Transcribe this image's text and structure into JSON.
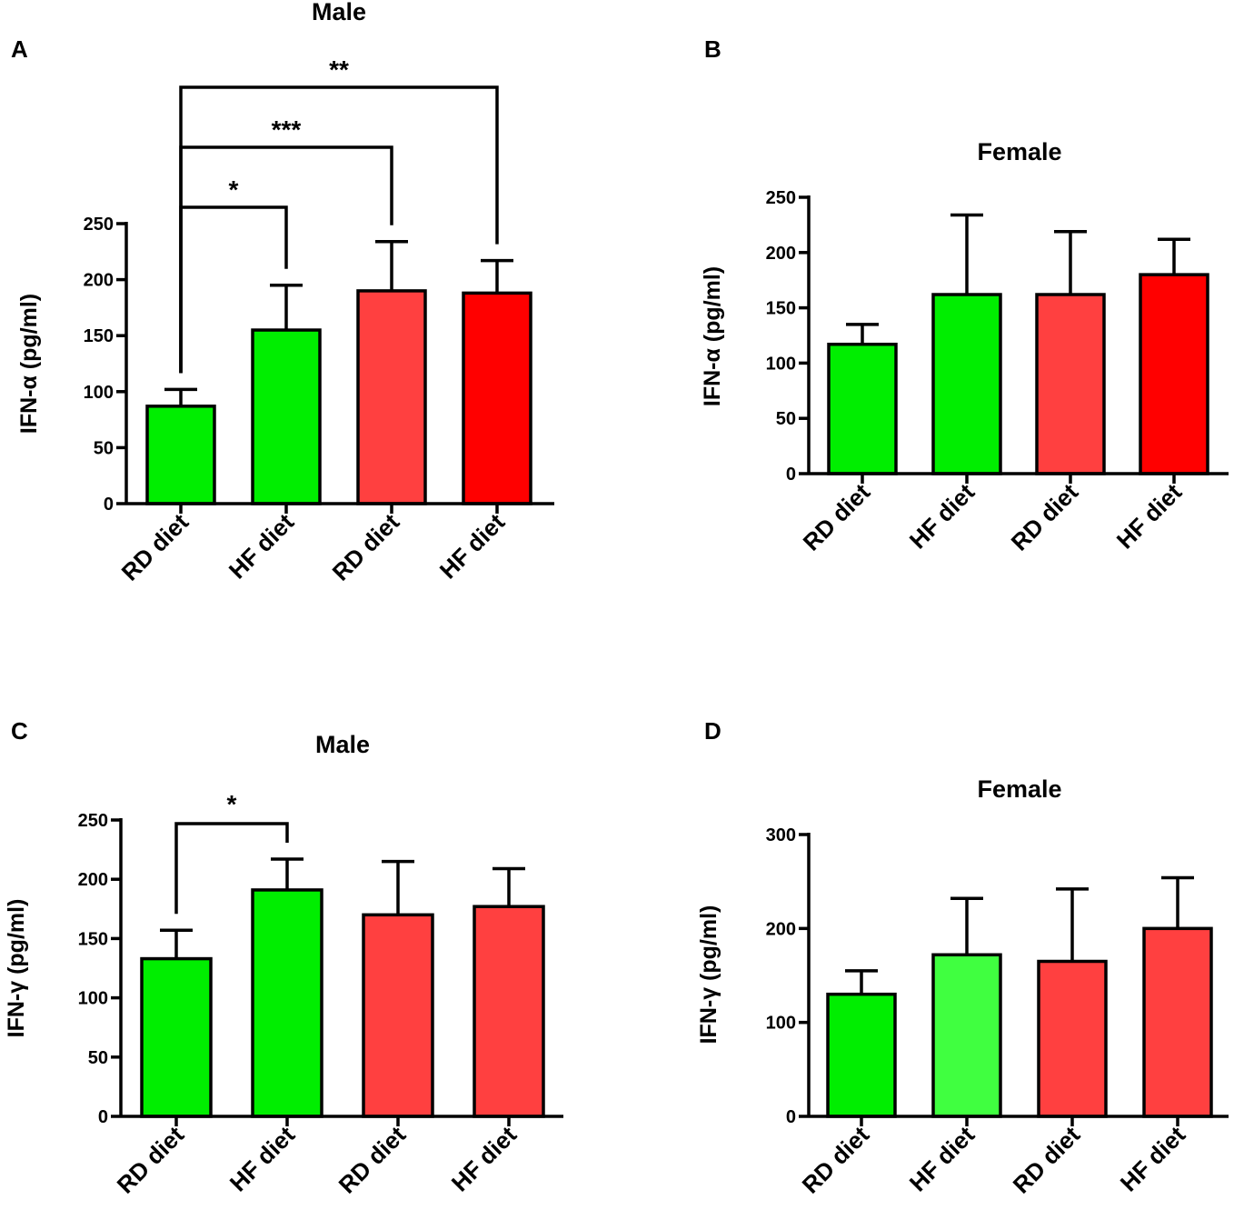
{
  "chart_data": [
    {
      "panel": "A",
      "type": "bar",
      "title": "Male",
      "ylabel": "IFN-α (pg/ml)",
      "xlabel": "",
      "categories": [
        "RD diet",
        "HF diet",
        "RD diet",
        "HF diet"
      ],
      "values": [
        87,
        155,
        190,
        188
      ],
      "errors": [
        15,
        40,
        44,
        29
      ],
      "colors": [
        "#00ee00",
        "#00ee00",
        "#ff4040",
        "#ff0000"
      ],
      "ylim": [
        0,
        250
      ],
      "yticks": [
        0,
        50,
        100,
        150,
        200,
        250
      ],
      "significance": [
        {
          "from": 0,
          "to": 1,
          "label": "*"
        },
        {
          "from": 0,
          "to": 2,
          "label": "***"
        },
        {
          "from": 0,
          "to": 3,
          "label": "**"
        }
      ]
    },
    {
      "panel": "B",
      "type": "bar",
      "title": "Female",
      "ylabel": "IFN-α (pg/ml)",
      "xlabel": "",
      "categories": [
        "RD diet",
        "HF diet",
        "RD diet",
        "HF diet"
      ],
      "values": [
        117,
        162,
        162,
        180
      ],
      "errors": [
        18,
        72,
        57,
        32
      ],
      "colors": [
        "#00ee00",
        "#00ee00",
        "#ff4040",
        "#ff0000"
      ],
      "ylim": [
        0,
        250
      ],
      "yticks": [
        0,
        50,
        100,
        150,
        200,
        250
      ],
      "significance": []
    },
    {
      "panel": "C",
      "type": "bar",
      "title": "Male",
      "ylabel": "IFN-γ (pg/ml)",
      "xlabel": "",
      "categories": [
        "RD diet",
        "HF diet",
        "RD diet",
        "HF diet"
      ],
      "values": [
        133,
        191,
        170,
        177
      ],
      "errors": [
        24,
        26,
        45,
        32
      ],
      "colors": [
        "#00ee00",
        "#00ee00",
        "#ff4040",
        "#ff4040"
      ],
      "ylim": [
        0,
        250
      ],
      "yticks": [
        0,
        50,
        100,
        150,
        200,
        250
      ],
      "significance": [
        {
          "from": 0,
          "to": 1,
          "label": "*"
        }
      ]
    },
    {
      "panel": "D",
      "type": "bar",
      "title": "Female",
      "ylabel": "IFN-γ (pg/ml)",
      "xlabel": "",
      "categories": [
        "RD diet",
        "HF diet",
        "RD diet",
        "HF diet"
      ],
      "values": [
        130,
        172,
        165,
        200
      ],
      "errors": [
        25,
        60,
        77,
        54
      ],
      "colors": [
        "#00ee00",
        "#40ff40",
        "#ff4040",
        "#ff4040"
      ],
      "ylim": [
        0,
        300
      ],
      "yticks": [
        0,
        100,
        200,
        300
      ],
      "significance": []
    }
  ]
}
